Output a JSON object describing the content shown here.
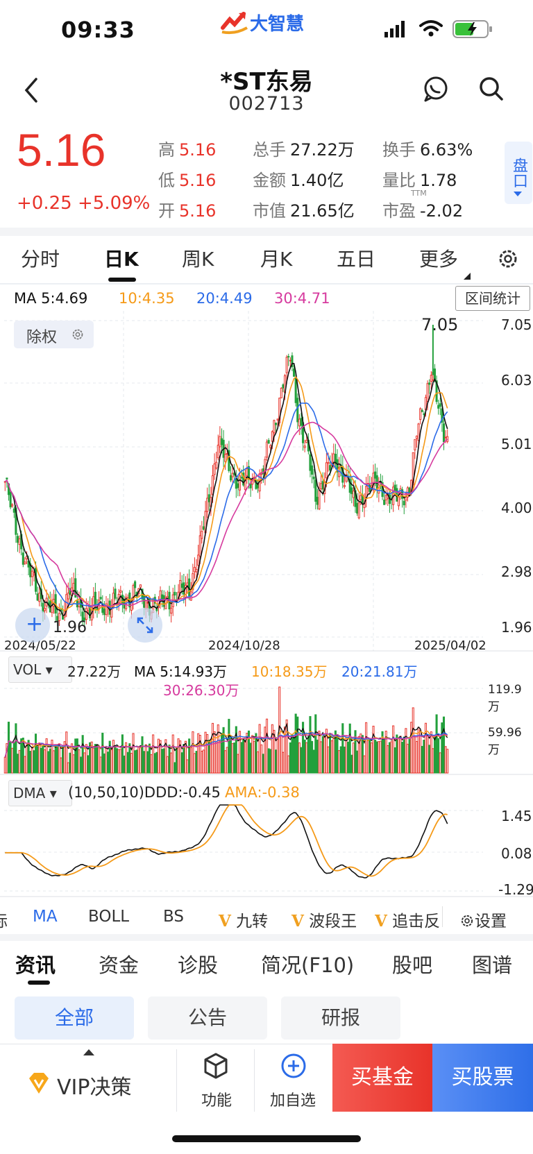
{
  "status_bar": {
    "time": "09:33",
    "brand": "大智慧"
  },
  "header": {
    "name": "*ST东易",
    "code": "002713"
  },
  "quote": {
    "price": "5.16",
    "change": "+0.25",
    "change_pct": "+5.09%",
    "high_label": "高",
    "high": "5.16",
    "low_label": "低",
    "low": "5.16",
    "open_label": "开",
    "open": "5.16",
    "vol_label": "总手",
    "vol": "27.22万",
    "amt_label": "金额",
    "amt": "1.40亿",
    "mcap_label": "市值",
    "mcap": "21.65亿",
    "turnover_label": "换手",
    "turnover": "6.63%",
    "vr_label": "量比",
    "vr": "1.78",
    "pe_label": "市盈",
    "pe_sup": "TTM",
    "pe": "-2.02",
    "pankou": "盘口"
  },
  "period_tabs": [
    "分时",
    "日K",
    "周K",
    "月K",
    "五日",
    "更多"
  ],
  "active_period": "日K",
  "ma_legend": {
    "ma5": "MA 5:4.69",
    "ma10": "10:4.35",
    "ma20": "20:4.49",
    "ma30": "30:4.71"
  },
  "range_stat": "区间统计",
  "fuquan": "除权",
  "colors": {
    "up": "#e8332a",
    "down": "#23a03c",
    "ma5": "#111111",
    "ma10": "#f59a18",
    "ma20": "#2b6be8",
    "ma30": "#d63a9e",
    "accent": "#2b6be8"
  },
  "chart_data": [
    {
      "type": "candlestick",
      "title": "",
      "y_tick_labels": [
        "7.05",
        "6.03",
        "5.01",
        "4.00",
        "2.98",
        "1.96"
      ],
      "ylim": [
        1.96,
        7.05
      ],
      "x_tick_labels": [
        "2024/05/22",
        "2024/10/28",
        "2025/04/02"
      ],
      "annotations": {
        "max": "7.05",
        "min": "1.96"
      },
      "close_path": [
        [
          0,
          4.4
        ],
        [
          6,
          3.6
        ],
        [
          12,
          3.0
        ],
        [
          18,
          2.5
        ],
        [
          24,
          2.3
        ],
        [
          30,
          2.1
        ],
        [
          36,
          2.6
        ],
        [
          42,
          2.2
        ],
        [
          48,
          2.25
        ],
        [
          54,
          2.3
        ],
        [
          60,
          2.35
        ],
        [
          66,
          2.4
        ],
        [
          72,
          2.55
        ],
        [
          78,
          2.35
        ],
        [
          84,
          2.3
        ],
        [
          90,
          2.4
        ],
        [
          96,
          2.5
        ],
        [
          102,
          2.6
        ],
        [
          108,
          3.3
        ],
        [
          114,
          4.3
        ],
        [
          118,
          5.1
        ],
        [
          124,
          4.6
        ],
        [
          130,
          4.4
        ],
        [
          136,
          4.4
        ],
        [
          142,
          4.5
        ],
        [
          148,
          5.2
        ],
        [
          154,
          6.1
        ],
        [
          158,
          6.5
        ],
        [
          162,
          5.6
        ],
        [
          168,
          4.8
        ],
        [
          172,
          4.1
        ],
        [
          178,
          4.6
        ],
        [
          184,
          4.7
        ],
        [
          190,
          4.4
        ],
        [
          194,
          3.9
        ],
        [
          200,
          4.3
        ],
        [
          206,
          4.35
        ],
        [
          212,
          4.15
        ],
        [
          218,
          4.1
        ],
        [
          224,
          4.3
        ],
        [
          228,
          5.2
        ],
        [
          232,
          5.7
        ],
        [
          236,
          6.35
        ],
        [
          240,
          5.6
        ],
        [
          243,
          5.2
        ],
        [
          245,
          5.16
        ]
      ],
      "series": [
        {
          "name": "MA 5",
          "values": [
            4.69
          ]
        },
        {
          "name": "10",
          "values": [
            4.35
          ]
        },
        {
          "name": "20",
          "values": [
            4.49
          ]
        },
        {
          "name": "30",
          "values": [
            4.71
          ]
        }
      ],
      "grid": true
    },
    {
      "type": "bar",
      "title": "VOL",
      "current": "27.22万",
      "ma_labels": {
        "ma5": "MA 5:14.93万",
        "ma10": "10:18.35万",
        "ma20": "20:21.81万",
        "ma30": "30:26.30万"
      },
      "y_tick_labels": [
        "119.9万",
        "59.96万"
      ],
      "ylim": [
        0,
        119.9
      ]
    },
    {
      "type": "line",
      "title": "DMA",
      "params": "(10,50,10)",
      "series": [
        {
          "name": "DDD",
          "value": "-0.45"
        },
        {
          "name": "AMA",
          "value": "-0.38"
        }
      ],
      "y_tick_labels": [
        "1.45",
        "0.08",
        "-1.29"
      ],
      "ylim": [
        -1.29,
        1.45
      ]
    }
  ],
  "indicators": [
    "标",
    "MA",
    "BOLL",
    "BS",
    "九转",
    "波段王",
    "追击反",
    "设置"
  ],
  "active_indicator": "MA",
  "info_tabs": [
    "资讯",
    "资金",
    "诊股",
    "简况(F10)",
    "股吧",
    "图谱"
  ],
  "active_info_tab": "资讯",
  "filters": [
    "全部",
    "公告",
    "研报"
  ],
  "active_filter": "全部",
  "bottom_bar": {
    "vip": "VIP决策",
    "func": "功能",
    "add": "加自选",
    "buy_fund": "买基金",
    "buy_stock": "买股票"
  }
}
